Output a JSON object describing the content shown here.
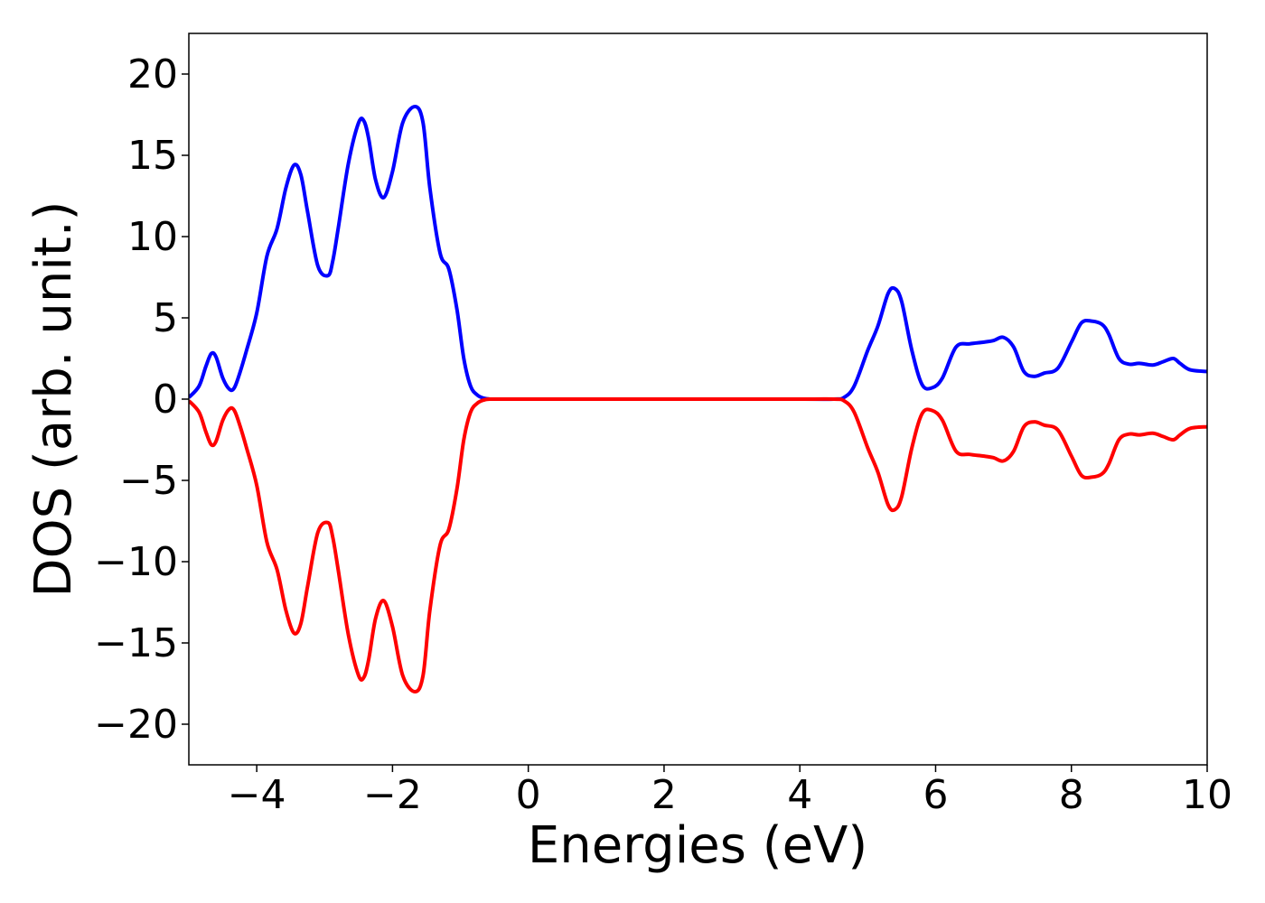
{
  "chart_data": {
    "type": "line",
    "title": "",
    "xlabel": "Energies (eV)",
    "ylabel": "DOS (arb. unit.)",
    "xlim": [
      -5,
      10
    ],
    "ylim": [
      -22.5,
      22.5
    ],
    "xticks": [
      -4,
      -2,
      0,
      2,
      4,
      6,
      8,
      10
    ],
    "yticks": [
      -20,
      -15,
      -10,
      -5,
      0,
      5,
      10,
      15,
      20
    ],
    "xtick_labels": [
      "−4",
      "−2",
      "0",
      "2",
      "4",
      "6",
      "8",
      "10"
    ],
    "ytick_labels": [
      "−20",
      "−15",
      "−10",
      "−5",
      "0",
      "5",
      "10",
      "15",
      "20"
    ],
    "grid": false,
    "legend": "none",
    "series": [
      {
        "color": "#0000ff",
        "x": [
          -5.0,
          -4.85,
          -4.75,
          -4.67,
          -4.6,
          -4.5,
          -4.4,
          -4.33,
          -4.25,
          -4.15,
          -4.0,
          -3.85,
          -3.7,
          -3.57,
          -3.45,
          -3.35,
          -3.25,
          -3.1,
          -2.95,
          -2.88,
          -2.8,
          -2.65,
          -2.5,
          -2.42,
          -2.35,
          -2.25,
          -2.13,
          -2.0,
          -1.85,
          -1.67,
          -1.55,
          -1.45,
          -1.3,
          -1.17,
          -1.05,
          -0.95,
          -0.85,
          -0.75,
          -0.65,
          -0.55,
          -0.4,
          0.0,
          2.0,
          4.0,
          4.5,
          4.65,
          4.8,
          5.0,
          5.15,
          5.3,
          5.4,
          5.5,
          5.65,
          5.8,
          5.95,
          6.1,
          6.3,
          6.5,
          6.7,
          6.85,
          7.0,
          7.15,
          7.3,
          7.45,
          7.6,
          7.8,
          8.0,
          8.15,
          8.3,
          8.45,
          8.55,
          8.7,
          8.85,
          9.0,
          9.2,
          9.35,
          9.5,
          9.6,
          9.75,
          10.0
        ],
        "y": [
          0.1,
          0.8,
          2.0,
          2.8,
          2.6,
          1.3,
          0.6,
          0.7,
          1.6,
          3.0,
          5.3,
          8.8,
          10.5,
          13.0,
          14.4,
          13.8,
          11.5,
          8.2,
          7.6,
          8.5,
          10.5,
          14.5,
          17.0,
          17.1,
          16.0,
          13.5,
          12.4,
          14.0,
          17.0,
          18.0,
          17.0,
          13.0,
          9.0,
          8.0,
          5.5,
          2.5,
          0.8,
          0.25,
          0.05,
          0.0,
          0.0,
          0.0,
          0.0,
          0.0,
          0.0,
          0.1,
          0.8,
          3.0,
          4.5,
          6.5,
          6.8,
          6.0,
          3.0,
          0.9,
          0.7,
          1.3,
          3.2,
          3.4,
          3.5,
          3.6,
          3.8,
          3.2,
          1.7,
          1.4,
          1.6,
          1.9,
          3.5,
          4.7,
          4.8,
          4.6,
          4.0,
          2.5,
          2.15,
          2.2,
          2.1,
          2.3,
          2.5,
          2.2,
          1.8,
          1.7
        ]
      },
      {
        "color": "#ff0000",
        "x": [
          -5.0,
          -4.85,
          -4.75,
          -4.67,
          -4.6,
          -4.5,
          -4.4,
          -4.33,
          -4.25,
          -4.15,
          -4.0,
          -3.85,
          -3.7,
          -3.57,
          -3.45,
          -3.35,
          -3.25,
          -3.1,
          -2.95,
          -2.88,
          -2.8,
          -2.65,
          -2.5,
          -2.42,
          -2.35,
          -2.25,
          -2.13,
          -2.0,
          -1.85,
          -1.67,
          -1.55,
          -1.45,
          -1.3,
          -1.17,
          -1.05,
          -0.95,
          -0.85,
          -0.75,
          -0.65,
          -0.55,
          -0.4,
          0.0,
          2.0,
          4.0,
          4.5,
          4.65,
          4.8,
          5.0,
          5.15,
          5.3,
          5.4,
          5.5,
          5.65,
          5.8,
          5.95,
          6.1,
          6.3,
          6.5,
          6.7,
          6.85,
          7.0,
          7.15,
          7.3,
          7.45,
          7.6,
          7.8,
          8.0,
          8.15,
          8.3,
          8.45,
          8.55,
          8.7,
          8.85,
          9.0,
          9.2,
          9.35,
          9.5,
          9.6,
          9.75,
          10.0
        ],
        "y": [
          -0.1,
          -0.8,
          -2.0,
          -2.8,
          -2.6,
          -1.3,
          -0.6,
          -0.7,
          -1.6,
          -3.0,
          -5.3,
          -8.8,
          -10.5,
          -13.0,
          -14.4,
          -13.8,
          -11.5,
          -8.2,
          -7.6,
          -8.5,
          -10.5,
          -14.5,
          -17.0,
          -17.1,
          -16.0,
          -13.5,
          -12.4,
          -14.0,
          -17.0,
          -18.0,
          -17.0,
          -13.0,
          -9.0,
          -8.0,
          -5.5,
          -2.5,
          -0.8,
          -0.25,
          -0.05,
          0.0,
          0.0,
          0.0,
          0.0,
          0.0,
          0.0,
          -0.1,
          -0.8,
          -3.0,
          -4.5,
          -6.5,
          -6.8,
          -6.0,
          -3.0,
          -0.9,
          -0.7,
          -1.3,
          -3.2,
          -3.4,
          -3.5,
          -3.6,
          -3.8,
          -3.2,
          -1.7,
          -1.4,
          -1.6,
          -1.9,
          -3.5,
          -4.7,
          -4.8,
          -4.6,
          -4.0,
          -2.5,
          -2.15,
          -2.2,
          -2.1,
          -2.3,
          -2.5,
          -2.2,
          -1.8,
          -1.7
        ]
      }
    ]
  }
}
